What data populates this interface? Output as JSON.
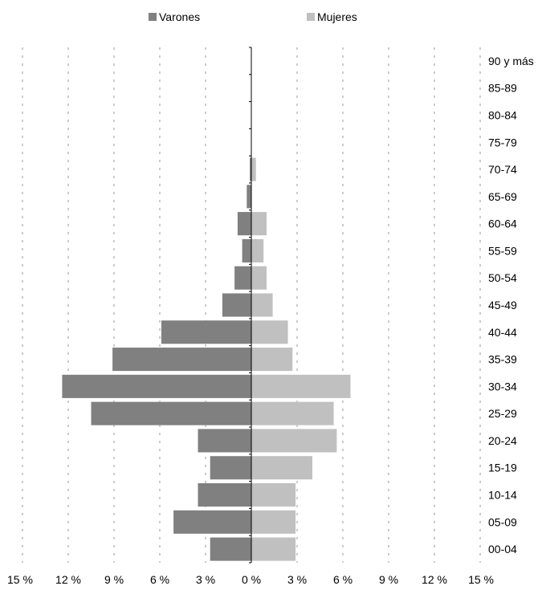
{
  "legend": {
    "male": "Varones",
    "female": "Mujeres"
  },
  "colors": {
    "male": "#808080",
    "female": "#c0c0c0",
    "grid": "#9a9a9a",
    "axis": "#000000"
  },
  "chart_data": {
    "type": "bar",
    "orientation": "horizontal-population-pyramid",
    "title": "",
    "xlabel": "",
    "ylabel": "",
    "xlim": [
      -15,
      15
    ],
    "x_ticks": [
      -15,
      -12,
      -9,
      -6,
      -3,
      0,
      3,
      6,
      9,
      12,
      15
    ],
    "x_tick_labels": [
      "15 %",
      "12 %",
      "9 %",
      "6 %",
      "3 %",
      "0 %",
      "3 %",
      "6 %",
      "9 %",
      "12 %",
      "15 %"
    ],
    "grid": "vertical dashed",
    "legend_position": "top",
    "categories": [
      "90 y más",
      "85-89",
      "80-84",
      "75-79",
      "70-74",
      "65-69",
      "60-64",
      "55-59",
      "50-54",
      "45-49",
      "40-44",
      "35-39",
      "30-34",
      "25-29",
      "20-24",
      "15-19",
      "10-14",
      "05-09",
      "00-04"
    ],
    "series": [
      {
        "name": "Varones",
        "values": [
          0,
          0,
          0,
          0,
          0.1,
          0.3,
          0.9,
          0.6,
          1.1,
          1.9,
          5.9,
          9.1,
          12.4,
          10.5,
          3.5,
          2.7,
          3.5,
          5.1,
          2.7
        ]
      },
      {
        "name": "Mujeres",
        "values": [
          0,
          0,
          0,
          0,
          0.3,
          0,
          1.0,
          0.8,
          1.0,
          1.4,
          2.4,
          2.7,
          6.5,
          5.4,
          5.6,
          4.0,
          2.9,
          2.9,
          2.9
        ]
      }
    ]
  }
}
